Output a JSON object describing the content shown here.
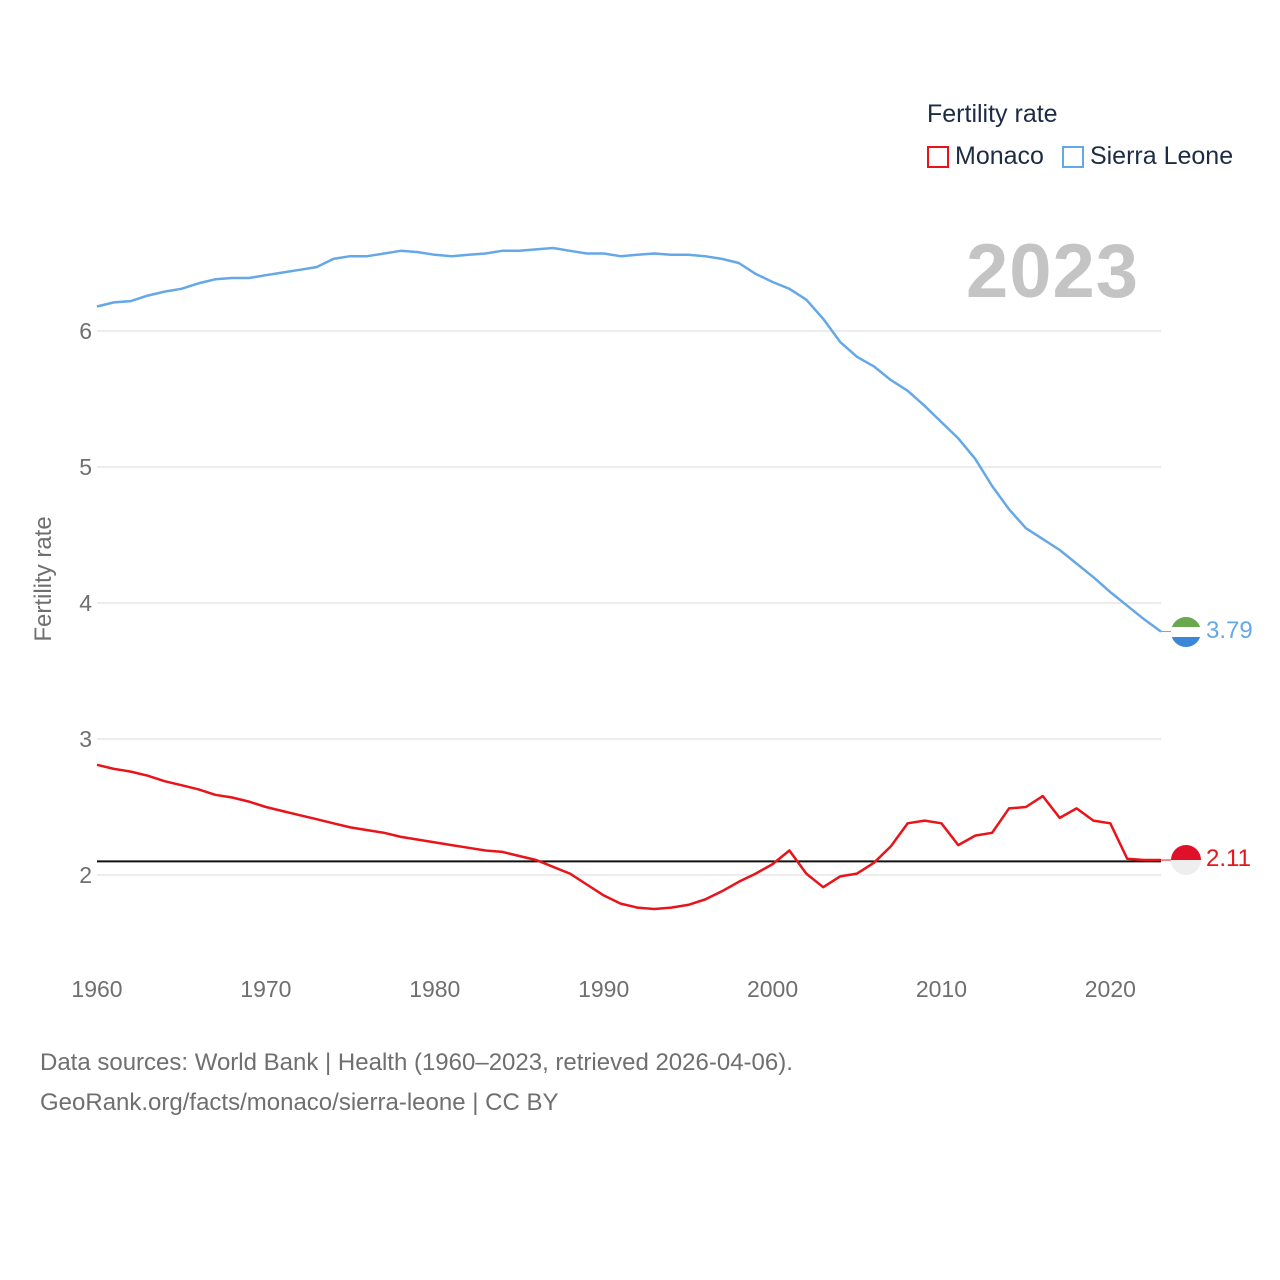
{
  "legend": {
    "title": "Fertility rate",
    "items": [
      {
        "label": "Monaco",
        "color": "#e8141a"
      },
      {
        "label": "Sierra Leone",
        "color": "#65a8e8"
      }
    ]
  },
  "year_label": "2023",
  "footer": {
    "line1": "Data sources: World Bank | Health (1960–2023, retrieved 2026-04-06).",
    "line2": "GeoRank.org/facts/monaco/sierra-leone | CC BY"
  },
  "chart_data": {
    "type": "line",
    "title": "Fertility rate",
    "xlabel": "",
    "ylabel": "Fertility rate",
    "xlim": [
      1960,
      2023
    ],
    "ylim": [
      1.5,
      6.9
    ],
    "x_ticks": [
      1960,
      1970,
      1980,
      1990,
      2000,
      2010,
      2020
    ],
    "y_ticks": [
      2,
      3,
      4,
      5,
      6
    ],
    "reference_line": 2.1,
    "grid": true,
    "legend_position": "top-right",
    "x": [
      1960,
      1961,
      1962,
      1963,
      1964,
      1965,
      1966,
      1967,
      1968,
      1969,
      1970,
      1971,
      1972,
      1973,
      1974,
      1975,
      1976,
      1977,
      1978,
      1979,
      1980,
      1981,
      1982,
      1983,
      1984,
      1985,
      1986,
      1987,
      1988,
      1989,
      1990,
      1991,
      1992,
      1993,
      1994,
      1995,
      1996,
      1997,
      1998,
      1999,
      2000,
      2001,
      2002,
      2003,
      2004,
      2005,
      2006,
      2007,
      2008,
      2009,
      2010,
      2011,
      2012,
      2013,
      2014,
      2015,
      2016,
      2017,
      2018,
      2019,
      2020,
      2021,
      2022,
      2023
    ],
    "series": [
      {
        "name": "Sierra Leone",
        "color": "#65a8e8",
        "end_label": "3.79",
        "values": [
          6.18,
          6.21,
          6.22,
          6.26,
          6.29,
          6.31,
          6.35,
          6.38,
          6.39,
          6.39,
          6.41,
          6.43,
          6.45,
          6.47,
          6.53,
          6.55,
          6.55,
          6.57,
          6.59,
          6.58,
          6.56,
          6.55,
          6.56,
          6.57,
          6.59,
          6.59,
          6.6,
          6.61,
          6.59,
          6.57,
          6.57,
          6.55,
          6.56,
          6.57,
          6.56,
          6.56,
          6.55,
          6.53,
          6.5,
          6.42,
          6.36,
          6.31,
          6.23,
          6.09,
          5.92,
          5.81,
          5.74,
          5.64,
          5.56,
          5.45,
          5.33,
          5.21,
          5.06,
          4.86,
          4.69,
          4.55,
          4.47,
          4.39,
          4.29,
          4.19,
          4.08,
          3.98,
          3.88,
          3.79
        ]
      },
      {
        "name": "Monaco",
        "color": "#e8141a",
        "end_label": "2.11",
        "values": [
          2.81,
          2.78,
          2.76,
          2.73,
          2.69,
          2.66,
          2.63,
          2.59,
          2.57,
          2.54,
          2.5,
          2.47,
          2.44,
          2.41,
          2.38,
          2.35,
          2.33,
          2.31,
          2.28,
          2.26,
          2.24,
          2.22,
          2.2,
          2.18,
          2.17,
          2.14,
          2.11,
          2.06,
          2.01,
          1.93,
          1.85,
          1.79,
          1.76,
          1.75,
          1.76,
          1.78,
          1.82,
          1.88,
          1.95,
          2.01,
          2.08,
          2.18,
          2.01,
          1.91,
          1.99,
          2.01,
          2.09,
          2.21,
          2.38,
          2.4,
          2.38,
          2.22,
          2.29,
          2.31,
          2.49,
          2.5,
          2.58,
          2.42,
          2.49,
          2.4,
          2.38,
          2.12,
          2.11,
          2.11
        ]
      }
    ]
  }
}
